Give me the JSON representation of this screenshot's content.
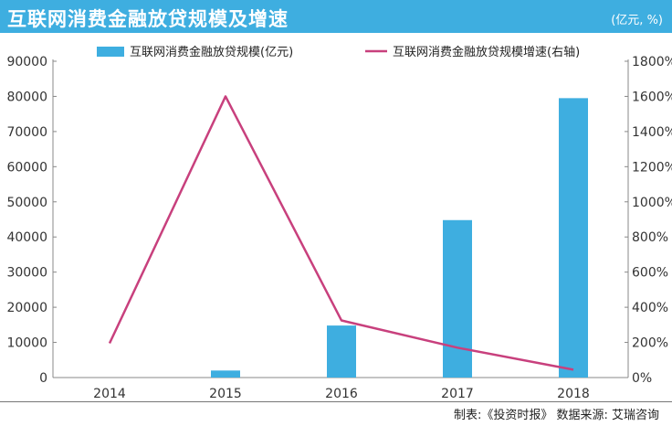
{
  "header": {
    "title": "互联网消费金融放贷规模及增速",
    "unit": "(亿元, %)"
  },
  "footer": {
    "source": "制表:《投资时报》 数据来源: 艾瑞咨询"
  },
  "colors": {
    "header_bg": "#3eaee0",
    "bar": "#3eaee0",
    "line": "#c8407d"
  },
  "chart_data": {
    "type": "bar",
    "categories": [
      "2014",
      "2015",
      "2016",
      "2017",
      "2018"
    ],
    "series": [
      {
        "name": "互联网消费金融放贷规模(亿元)",
        "type": "bar",
        "axis": "left",
        "values": [
          0,
          2000,
          14800,
          44800,
          79500
        ]
      },
      {
        "name": "互联网消费金融放贷规模增速(右轴)",
        "type": "line",
        "axis": "right",
        "values": [
          195,
          1600,
          325,
          170,
          45
        ]
      }
    ],
    "ylim": [
      0,
      90000
    ],
    "y2lim": [
      0,
      1800
    ],
    "yticks": [
      "0",
      "10000",
      "20000",
      "30000",
      "40000",
      "50000",
      "60000",
      "70000",
      "80000",
      "90000"
    ],
    "y2ticks": [
      "0%",
      "200%",
      "400%",
      "600%",
      "800%",
      "1000%",
      "1200%",
      "1400%",
      "1600%",
      "1800%"
    ],
    "legend": "top-center",
    "grid": false
  }
}
